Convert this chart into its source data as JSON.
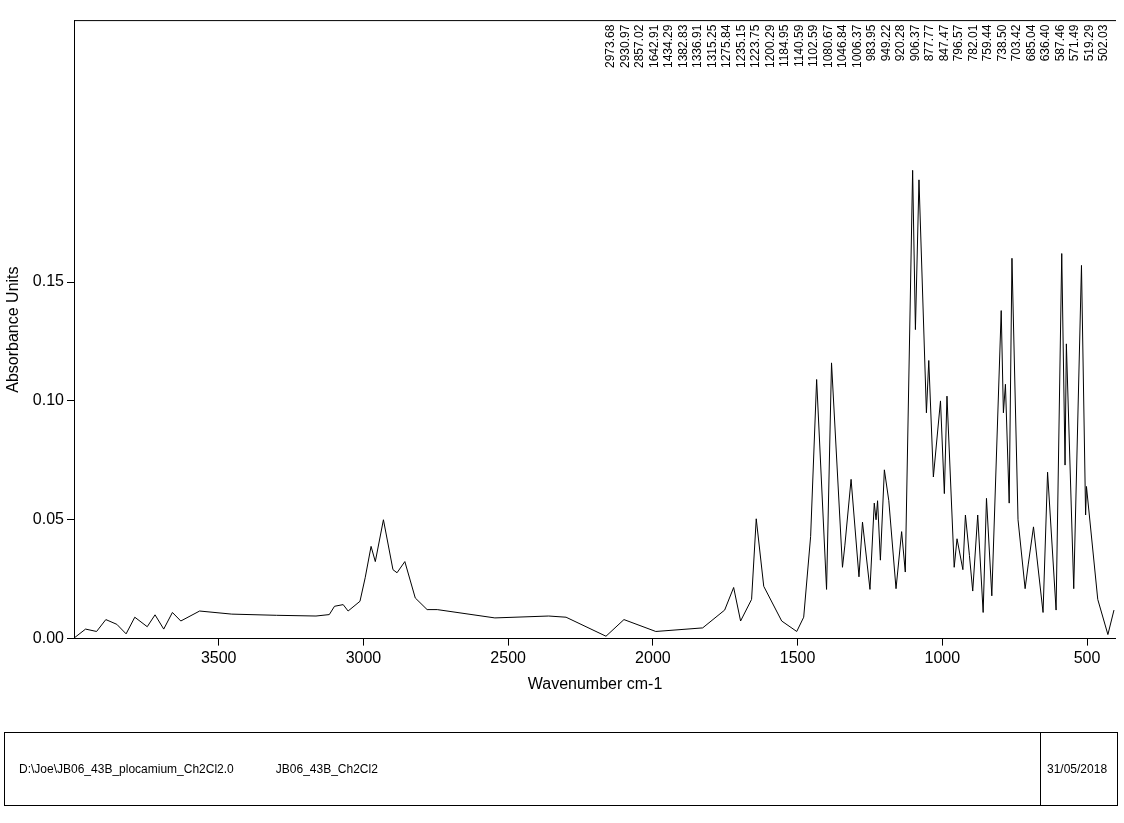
{
  "chart_data": {
    "type": "line",
    "xlabel": "Wavenumber cm-1",
    "ylabel": "Absorbance Units",
    "xlim": [
      4000,
      400
    ],
    "xticks": [
      3500,
      3000,
      2500,
      2000,
      1500,
      1000,
      500
    ],
    "ylim": [
      0,
      0.26
    ],
    "yticks": [
      {
        "value": 0,
        "label": "0.00"
      },
      {
        "value": 0.05,
        "label": "0.05"
      },
      {
        "value": 0.1,
        "label": "0.10"
      },
      {
        "value": 0.15,
        "label": "0.15"
      }
    ],
    "grid": false,
    "legend": false,
    "marker": "none",
    "line_style": "solid",
    "x": [
      3998,
      3960,
      3922,
      3890,
      3852,
      3820,
      3790,
      3747,
      3720,
      3690,
      3660,
      3631,
      3566,
      3455,
      3300,
      3164,
      3118,
      3100,
      3070,
      3053,
      3012,
      2994,
      2973.68,
      2959,
      2930.97,
      2898,
      2884,
      2857.02,
      2821,
      2780,
      2745,
      2546,
      2360,
      2300,
      2162,
      2100,
      1990,
      1828,
      1752,
      1721,
      1697,
      1659,
      1642.91,
      1617,
      1555,
      1503,
      1479,
      1455,
      1434.29,
      1400,
      1382.83,
      1345,
      1336.91,
      1315.25,
      1288,
      1275.84,
      1250,
      1235.15,
      1229,
      1223.75,
      1214,
      1200.29,
      1184.95,
      1160,
      1140.59,
      1128,
      1102.59,
      1093,
      1080.67,
      1055,
      1046.84,
      1031,
      1006.37,
      993,
      983.95,
      959,
      949.22,
      929,
      920.28,
      906.37,
      895,
      877.77,
      859,
      847.47,
      829,
      796.57,
      789,
      782.01,
      769,
      759.44,
      738.5,
      714,
      703.42,
      685.04,
      652,
      636.4,
      607,
      587.46,
      576,
      571.49,
      546,
      519.29,
      505,
      502.03,
      463,
      428,
      407
    ],
    "series": [
      {
        "color": "#000000",
        "values": [
          0.0004,
          0.004,
          0.003,
          0.008,
          0.006,
          0.002,
          0.009,
          0.005,
          0.01,
          0.004,
          0.011,
          0.0074,
          0.0116,
          0.0103,
          0.0098,
          0.0095,
          0.0101,
          0.0136,
          0.0143,
          0.0116,
          0.0157,
          0.0256,
          0.0388,
          0.0324,
          0.05,
          0.029,
          0.0277,
          0.0324,
          0.0171,
          0.0122,
          0.0122,
          0.0087,
          0.0095,
          0.009,
          0.001,
          0.008,
          0.003,
          0.0045,
          0.012,
          0.0215,
          0.0074,
          0.0165,
          0.0504,
          0.022,
          0.0074,
          0.003,
          0.009,
          0.043,
          0.109,
          0.0207,
          0.116,
          0.03,
          0.039,
          0.067,
          0.026,
          0.049,
          0.0207,
          0.057,
          0.05,
          0.058,
          0.033,
          0.071,
          0.058,
          0.021,
          0.045,
          0.028,
          0.197,
          0.13,
          0.193,
          0.095,
          0.117,
          0.068,
          0.1,
          0.061,
          0.102,
          0.03,
          0.042,
          0.029,
          0.052,
          0.035,
          0.02,
          0.052,
          0.011,
          0.059,
          0.018,
          0.138,
          0.095,
          0.107,
          0.057,
          0.16,
          0.05,
          0.021,
          0.031,
          0.047,
          0.011,
          0.07,
          0.012,
          0.162,
          0.073,
          0.124,
          0.021,
          0.157,
          0.052,
          0.064,
          0.0165,
          0.0017,
          0.012
        ]
      }
    ],
    "annotations": [
      "2973.68",
      "2930.97",
      "2857.02",
      "1642.91",
      "1434.29",
      "1382.83",
      "1336.91",
      "1315.25",
      "1275.84",
      "1235.15",
      "1223.75",
      "1200.29",
      "1184.95",
      "1140.59",
      "1102.59",
      "1080.67",
      "1046.84",
      "1006.37",
      "983.95",
      "949.22",
      "920.28",
      "906.37",
      "877.77",
      "847.47",
      "796.57",
      "782.01",
      "759.44",
      "738.50",
      "703.42",
      "685.04",
      "636.40",
      "587.46",
      "571.49",
      "519.29",
      "502.03",
      "D:\\Joe\\JB06_43B_plocamium_Ch2Cl2.0",
      "JB06_43B_Ch2Cl2",
      "31/05/2018"
    ]
  }
}
